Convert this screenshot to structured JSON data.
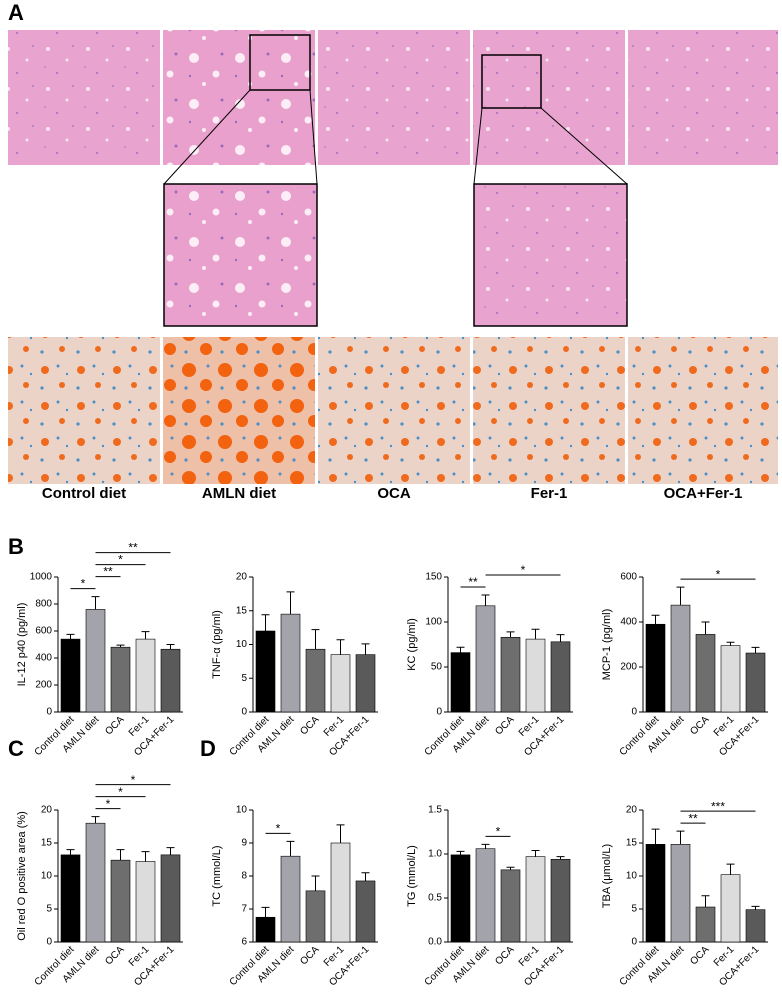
{
  "panels": [
    "A",
    "B",
    "C",
    "D"
  ],
  "images": {
    "labels": [
      "Control diet",
      "AMLN diet",
      "OCA",
      "Fer-1",
      "OCA+Fer-1"
    ]
  },
  "chart_data": [
    {
      "type": "bar",
      "ylabel": "IL-12 p40 (pg/ml)",
      "categories": [
        "Control diet",
        "AMLN diet",
        "OCA",
        "Fer-1",
        "OCA+Fer-1"
      ],
      "values": [
        540,
        760,
        480,
        540,
        465
      ],
      "errors": [
        35,
        95,
        15,
        55,
        35
      ],
      "colors": [
        "#000000",
        "#a3a3ab",
        "#6e6e6e",
        "#dcdcdc",
        "#5a5a5a"
      ],
      "ylim": [
        0,
        1000
      ],
      "yticks": [
        0,
        200,
        400,
        600,
        800,
        1000
      ],
      "annotations": [
        {
          "text": "*",
          "x": [
            0,
            1
          ]
        },
        {
          "text": "**",
          "x": [
            1,
            2
          ]
        },
        {
          "text": "*",
          "x": [
            1,
            3
          ]
        },
        {
          "text": "**",
          "x": [
            1,
            4
          ]
        }
      ]
    },
    {
      "type": "bar",
      "ylabel": "TNF-α (pg/ml)",
      "categories": [
        "Control diet",
        "AMLN diet",
        "OCA",
        "Fer-1",
        "OCA+Fer-1"
      ],
      "values": [
        12,
        14.5,
        9.3,
        8.5,
        8.5
      ],
      "errors": [
        2.4,
        3.3,
        2.9,
        2.2,
        1.6
      ],
      "colors": [
        "#000000",
        "#a3a3ab",
        "#6e6e6e",
        "#dcdcdc",
        "#5a5a5a"
      ],
      "ylim": [
        0,
        20
      ],
      "yticks": [
        0,
        5,
        10,
        15,
        20
      ],
      "annotations": []
    },
    {
      "type": "bar",
      "ylabel": "KC (pg/ml)",
      "categories": [
        "Control diet",
        "AMLN diet",
        "OCA",
        "Fer-1",
        "OCA+Fer-1"
      ],
      "values": [
        66,
        118,
        83,
        81,
        78
      ],
      "errors": [
        6,
        12,
        6,
        11,
        8
      ],
      "colors": [
        "#000000",
        "#a3a3ab",
        "#6e6e6e",
        "#dcdcdc",
        "#5a5a5a"
      ],
      "ylim": [
        0,
        150
      ],
      "yticks": [
        0,
        50,
        100,
        150
      ],
      "annotations": [
        {
          "text": "**",
          "x": [
            0,
            1
          ]
        },
        {
          "text": "*",
          "x": [
            1,
            4
          ]
        }
      ]
    },
    {
      "type": "bar",
      "ylabel": "MCP-1 (pg/ml)",
      "categories": [
        "Control diet",
        "AMLN diet",
        "OCA",
        "Fer-1",
        "OCA+Fer-1"
      ],
      "values": [
        390,
        475,
        345,
        295,
        262
      ],
      "errors": [
        40,
        80,
        55,
        15,
        25
      ],
      "colors": [
        "#000000",
        "#a3a3ab",
        "#6e6e6e",
        "#dcdcdc",
        "#5a5a5a"
      ],
      "ylim": [
        0,
        600
      ],
      "yticks": [
        0,
        200,
        400,
        600
      ],
      "annotations": [
        {
          "text": "*",
          "x": [
            1,
            4
          ]
        }
      ]
    },
    {
      "type": "bar",
      "ylabel": "Oil red O positive area (%)",
      "categories": [
        "Control diet",
        "AMLN diet",
        "OCA",
        "Fer-1",
        "OCA+Fer-1"
      ],
      "values": [
        13.2,
        18,
        12.4,
        12.2,
        13.2
      ],
      "errors": [
        0.8,
        1,
        1.6,
        1.5,
        1.1
      ],
      "colors": [
        "#000000",
        "#a3a3ab",
        "#6e6e6e",
        "#dcdcdc",
        "#5a5a5a"
      ],
      "ylim": [
        0,
        20
      ],
      "yticks": [
        0,
        5,
        10,
        15,
        20
      ],
      "annotations": [
        {
          "text": "*",
          "x": [
            1,
            2
          ]
        },
        {
          "text": "*",
          "x": [
            1,
            3
          ]
        },
        {
          "text": "*",
          "x": [
            1,
            4
          ]
        }
      ]
    },
    {
      "type": "bar",
      "ylabel": "TC (mmol/L)",
      "categories": [
        "Control diet",
        "AMLN diet",
        "OCA",
        "Fer-1",
        "OCA+Fer-1"
      ],
      "values": [
        6.75,
        8.6,
        7.55,
        9.0,
        7.85
      ],
      "errors": [
        0.3,
        0.45,
        0.45,
        0.55,
        0.25
      ],
      "colors": [
        "#000000",
        "#a3a3ab",
        "#6e6e6e",
        "#dcdcdc",
        "#5a5a5a"
      ],
      "ylim": [
        6,
        10
      ],
      "yticks": [
        6,
        7,
        8,
        9,
        10
      ],
      "annotations": [
        {
          "text": "*",
          "x": [
            0,
            1
          ]
        }
      ]
    },
    {
      "type": "bar",
      "ylabel": "TG (mmol/L)",
      "categories": [
        "Control diet",
        "AMLN diet",
        "OCA",
        "Fer-1",
        "OCA+Fer-1"
      ],
      "values": [
        0.99,
        1.06,
        0.82,
        0.97,
        0.94
      ],
      "errors": [
        0.04,
        0.05,
        0.03,
        0.07,
        0.03
      ],
      "colors": [
        "#000000",
        "#a3a3ab",
        "#6e6e6e",
        "#dcdcdc",
        "#5a5a5a"
      ],
      "ylim": [
        0,
        1.5
      ],
      "yticks": [
        {
          "value": 0,
          "label": "0.0"
        },
        0.5,
        {
          "value": 1,
          "label": "1.0"
        },
        1.5
      ],
      "annotations": [
        {
          "text": "*",
          "x": [
            1,
            2
          ]
        }
      ]
    },
    {
      "type": "bar",
      "ylabel": "TBA (μmol/L)",
      "categories": [
        "Control diet",
        "AMLN diet",
        "OCA",
        "Fer-1",
        "OCA+Fer-1"
      ],
      "values": [
        14.8,
        14.8,
        5.3,
        10.2,
        4.9
      ],
      "errors": [
        2.3,
        2,
        1.7,
        1.6,
        0.5
      ],
      "colors": [
        "#000000",
        "#a3a3ab",
        "#6e6e6e",
        "#dcdcdc",
        "#5a5a5a"
      ],
      "ylim": [
        0,
        20
      ],
      "yticks": [
        0,
        5,
        10,
        15,
        20
      ],
      "annotations": [
        {
          "text": "**",
          "x": [
            1,
            2
          ]
        },
        {
          "text": "***",
          "x": [
            1,
            4
          ]
        }
      ]
    }
  ]
}
